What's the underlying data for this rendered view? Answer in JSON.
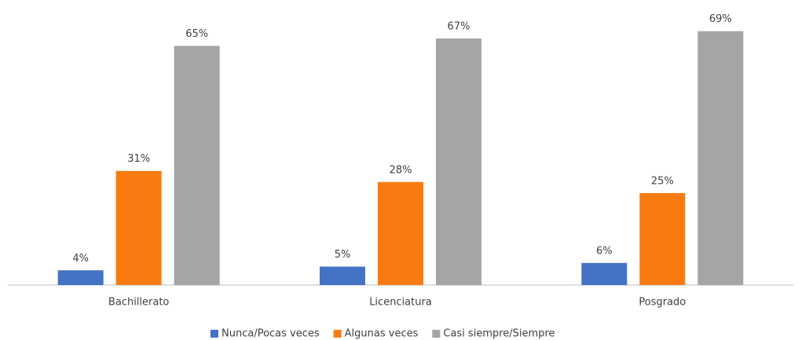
{
  "chart_data": {
    "type": "bar",
    "categories": [
      "Bachillerato",
      "Licenciatura",
      "Posgrado"
    ],
    "series": [
      {
        "name": "Nunca/Pocas veces",
        "color": "#4472c4",
        "values": [
          4,
          5,
          6
        ],
        "value_labels": [
          "4%",
          "5%",
          "6%"
        ]
      },
      {
        "name": "Algunas veces",
        "color": "#f97b0f",
        "values": [
          31,
          28,
          25
        ],
        "value_labels": [
          "31%",
          "28%",
          "25%"
        ]
      },
      {
        "name": "Casi siempre/Siempre",
        "color": "#a5a5a5",
        "values": [
          65,
          67,
          69
        ],
        "value_labels": [
          "65%",
          "67%",
          "69%"
        ]
      }
    ],
    "ylim": [
      0,
      70
    ],
    "legend": "bottom"
  }
}
